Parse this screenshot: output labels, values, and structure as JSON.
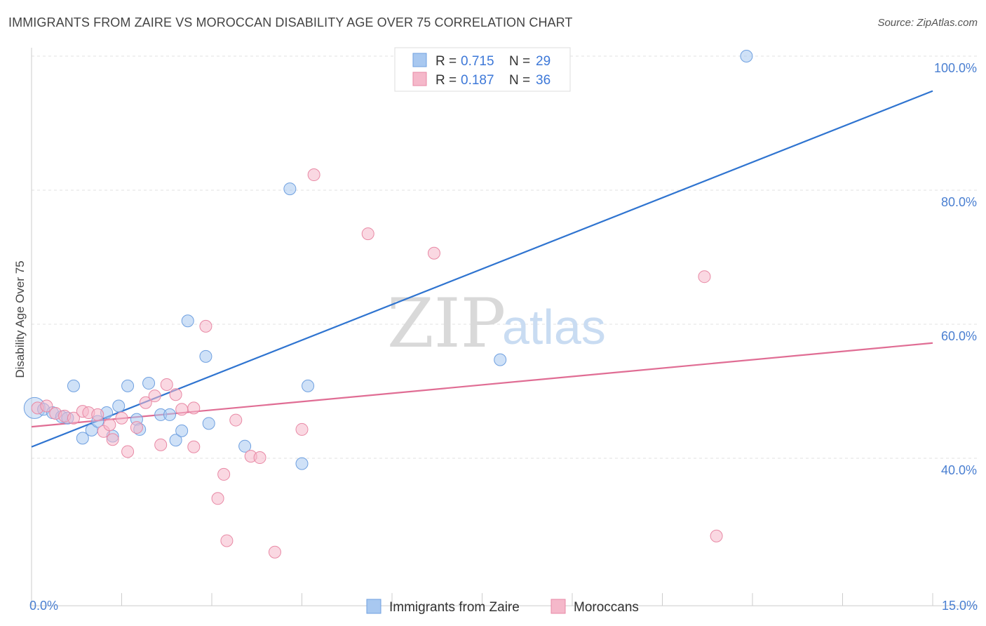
{
  "header": {
    "title": "IMMIGRANTS FROM ZAIRE VS MOROCCAN DISABILITY AGE OVER 75 CORRELATION CHART",
    "source": "Source: ZipAtlas.com"
  },
  "watermark": {
    "zip": "ZIP",
    "atlas": "atlas"
  },
  "legend_top": {
    "rows": [
      {
        "r_label": "R = ",
        "r_value": "0.715",
        "n_label": "N = ",
        "n_value": "29",
        "color": "#a8c8f0"
      },
      {
        "r_label": "R = ",
        "r_value": "0.187",
        "n_label": "N = ",
        "n_value": "36",
        "color": "#f5b8ca"
      }
    ]
  },
  "legend_bottom": {
    "items": [
      {
        "label": "Immigrants from Zaire",
        "color": "#a8c8f0"
      },
      {
        "label": "Moroccans",
        "color": "#f5b8ca"
      }
    ]
  },
  "chart_data": {
    "type": "scatter",
    "title": "IMMIGRANTS FROM ZAIRE VS MOROCCAN DISABILITY AGE OVER 75 CORRELATION CHART",
    "xlabel": "",
    "ylabel": "Disability Age Over 75",
    "xlim": [
      0,
      15
    ],
    "ylim": [
      18,
      102
    ],
    "x_tick_labels": [
      "0.0%",
      "15.0%"
    ],
    "y_ticks": [
      40,
      60,
      80,
      100
    ],
    "y_tick_labels": [
      "40.0%",
      "60.0%",
      "80.0%",
      "100.0%"
    ],
    "grid": true,
    "legend_position": "top-center",
    "series": [
      {
        "name": "Immigrants from Zaire",
        "color": "#a8c8f0",
        "edge": "#6fa0e0",
        "line_color": "#2f74d0",
        "trend": {
          "x": [
            0,
            15
          ],
          "y": [
            41.7,
            94.8
          ]
        },
        "points": [
          {
            "x": 0.05,
            "y": 47.5,
            "big": true
          },
          {
            "x": 0.2,
            "y": 47.3
          },
          {
            "x": 0.35,
            "y": 46.8
          },
          {
            "x": 0.5,
            "y": 46.2
          },
          {
            "x": 0.6,
            "y": 46.0
          },
          {
            "x": 0.7,
            "y": 50.8
          },
          {
            "x": 0.85,
            "y": 43.0
          },
          {
            "x": 1.0,
            "y": 44.2
          },
          {
            "x": 1.1,
            "y": 45.5
          },
          {
            "x": 1.25,
            "y": 46.8
          },
          {
            "x": 1.35,
            "y": 43.3
          },
          {
            "x": 1.45,
            "y": 47.8
          },
          {
            "x": 1.6,
            "y": 50.8
          },
          {
            "x": 1.75,
            "y": 45.8
          },
          {
            "x": 1.8,
            "y": 44.3
          },
          {
            "x": 1.95,
            "y": 51.2
          },
          {
            "x": 2.15,
            "y": 46.5
          },
          {
            "x": 2.3,
            "y": 46.5
          },
          {
            "x": 2.4,
            "y": 42.7
          },
          {
            "x": 2.5,
            "y": 44.1
          },
          {
            "x": 2.6,
            "y": 60.5
          },
          {
            "x": 2.9,
            "y": 55.2
          },
          {
            "x": 2.95,
            "y": 45.2
          },
          {
            "x": 3.55,
            "y": 41.8
          },
          {
            "x": 4.3,
            "y": 80.2
          },
          {
            "x": 4.5,
            "y": 39.2
          },
          {
            "x": 4.6,
            "y": 50.8
          },
          {
            "x": 7.8,
            "y": 54.7
          },
          {
            "x": 11.9,
            "y": 100.0
          }
        ]
      },
      {
        "name": "Moroccans",
        "color": "#f5b8ca",
        "edge": "#e889a5",
        "line_color": "#e06d94",
        "trend": {
          "x": [
            0,
            15
          ],
          "y": [
            44.7,
            57.2
          ]
        },
        "points": [
          {
            "x": 0.1,
            "y": 47.5
          },
          {
            "x": 0.25,
            "y": 47.8
          },
          {
            "x": 0.4,
            "y": 46.7
          },
          {
            "x": 0.55,
            "y": 46.3
          },
          {
            "x": 0.7,
            "y": 46.0
          },
          {
            "x": 0.85,
            "y": 47.0
          },
          {
            "x": 0.95,
            "y": 46.8
          },
          {
            "x": 1.1,
            "y": 46.5
          },
          {
            "x": 1.2,
            "y": 44.0
          },
          {
            "x": 1.3,
            "y": 45.0
          },
          {
            "x": 1.35,
            "y": 42.8
          },
          {
            "x": 1.5,
            "y": 46.0
          },
          {
            "x": 1.6,
            "y": 41.0
          },
          {
            "x": 1.75,
            "y": 44.6
          },
          {
            "x": 1.9,
            "y": 48.3
          },
          {
            "x": 2.05,
            "y": 49.3
          },
          {
            "x": 2.15,
            "y": 42.0
          },
          {
            "x": 2.25,
            "y": 51.0
          },
          {
            "x": 2.4,
            "y": 49.5
          },
          {
            "x": 2.5,
            "y": 47.3
          },
          {
            "x": 2.7,
            "y": 47.5
          },
          {
            "x": 2.7,
            "y": 41.7
          },
          {
            "x": 2.9,
            "y": 59.7
          },
          {
            "x": 3.1,
            "y": 34.0
          },
          {
            "x": 3.2,
            "y": 37.6
          },
          {
            "x": 3.25,
            "y": 27.7
          },
          {
            "x": 3.4,
            "y": 45.7
          },
          {
            "x": 3.65,
            "y": 40.3
          },
          {
            "x": 3.8,
            "y": 40.1
          },
          {
            "x": 4.05,
            "y": 26.0
          },
          {
            "x": 4.5,
            "y": 44.3
          },
          {
            "x": 4.7,
            "y": 82.3
          },
          {
            "x": 5.6,
            "y": 73.5
          },
          {
            "x": 6.7,
            "y": 70.6
          },
          {
            "x": 11.2,
            "y": 67.1
          },
          {
            "x": 11.4,
            "y": 28.4
          }
        ]
      }
    ]
  }
}
